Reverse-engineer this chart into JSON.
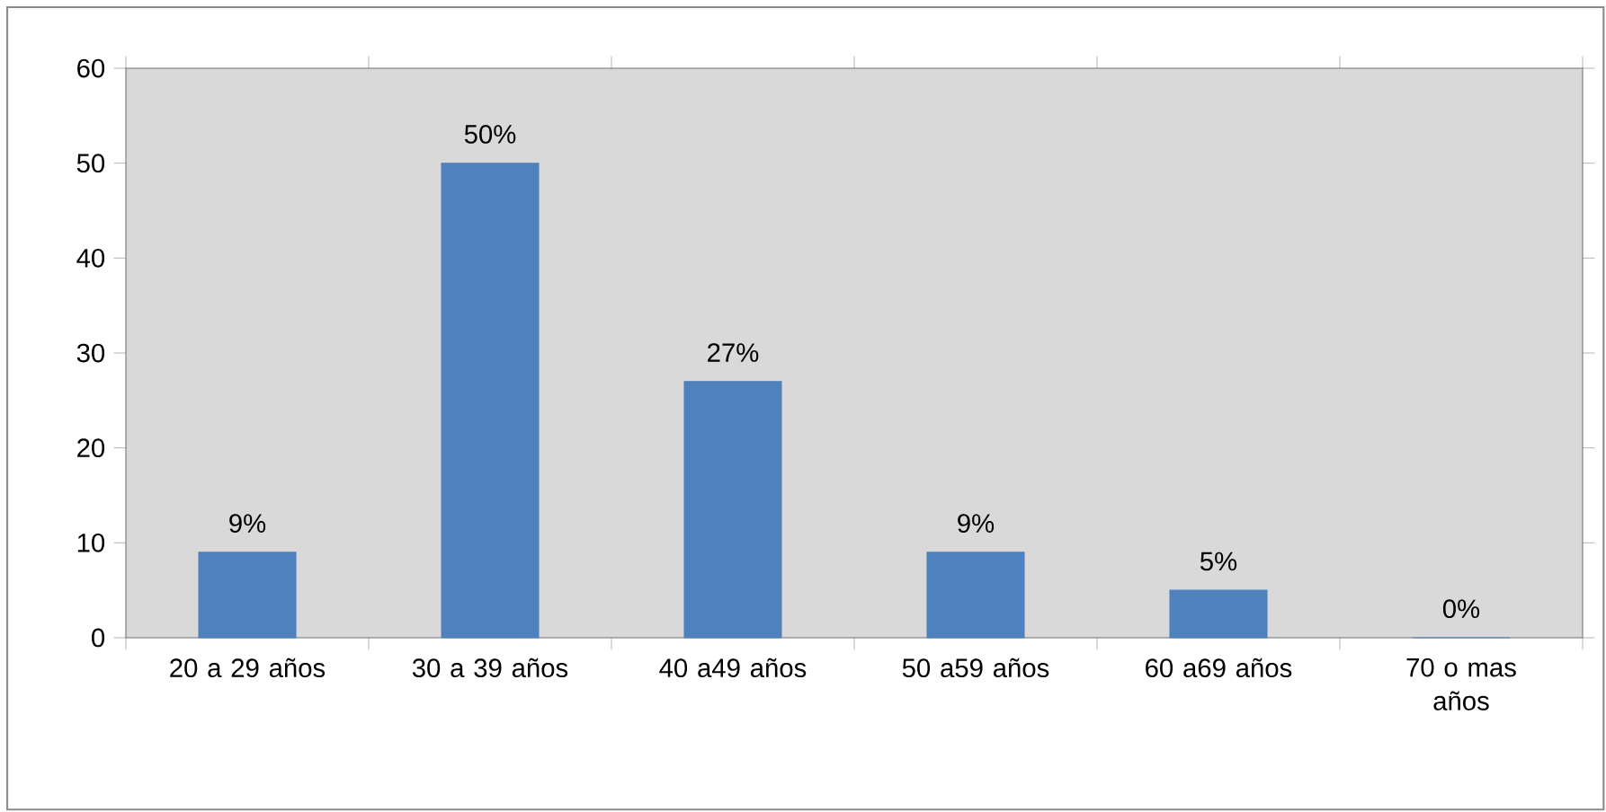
{
  "chart_data": {
    "type": "bar",
    "categories": [
      "20 a 29 años",
      "30 a 39 años",
      "40 a49 años",
      "50 a59 años",
      "60 a69 años",
      "70 o mas años"
    ],
    "values": [
      9,
      50,
      27,
      9,
      5,
      0
    ],
    "value_labels": [
      "9%",
      "50%",
      "27%",
      "9%",
      "5%",
      "0%"
    ],
    "color": "#4f81bd",
    "ylim": [
      0,
      60
    ],
    "yticks": [
      0,
      10,
      20,
      30,
      40,
      50,
      60
    ]
  }
}
